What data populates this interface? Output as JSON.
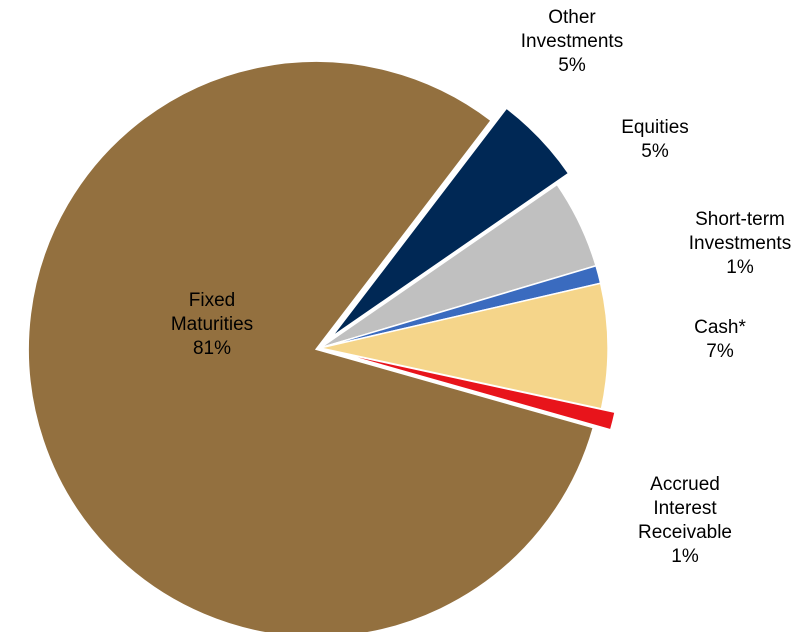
{
  "chart_data": {
    "type": "pie",
    "categories": [
      "Other Investments",
      "Equities",
      "Short-term Investments",
      "Cash*",
      "Accrued Interest Receivable",
      "Fixed Maturities"
    ],
    "values": [
      5,
      5,
      1,
      7,
      1,
      81
    ],
    "value_labels": [
      "5%",
      "5%",
      "1%",
      "7%",
      "1%",
      "81%"
    ],
    "colors": [
      "#002855",
      "#c0c0c0",
      "#3a6bbf",
      "#f5d58a",
      "#e8141b",
      "#93703f"
    ]
  }
}
